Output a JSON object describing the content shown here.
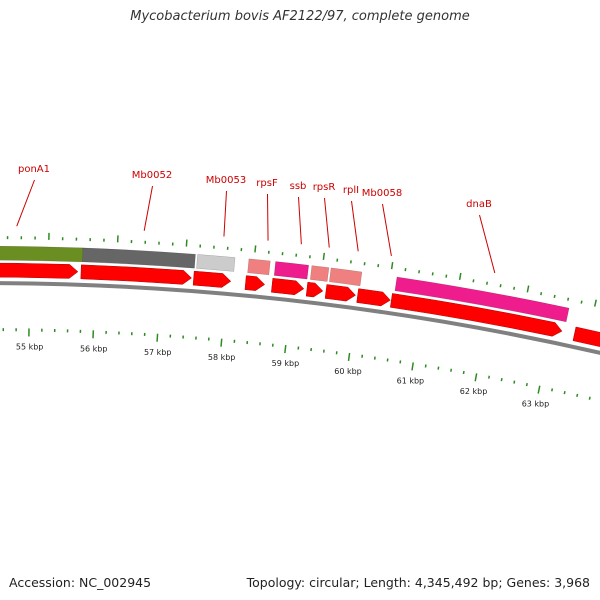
{
  "title": "Mycobacterium bovis AF2122/97, complete genome",
  "footer": {
    "accession": "Accession: NC_002945",
    "summary": "Topology: circular; Length: 4,345,492 bp; Genes: 3,968"
  },
  "gene_labels": [
    "ponA1",
    "Mb0052",
    "Mb0053",
    "rpsF",
    "ssb",
    "rpsR",
    "rplI",
    "Mb0058",
    "dnaB"
  ],
  "scale_labels": [
    "55 kbp",
    "56 kbp",
    "57 kbp",
    "58 kbp",
    "59 kbp",
    "60 kbp",
    "61 kbp",
    "62 kbp",
    "63 kbp"
  ],
  "colors": {
    "cog_green": "#6b8e23",
    "cog_darkgray": "#666666",
    "cog_lightgray": "#cccccc",
    "cog_salmon": "#f08080",
    "cog_magenta": "#ee1c8c",
    "cds_red": "#ff0000",
    "backbone": "#808080",
    "tick_green": "#2e8b22",
    "label_red": "#cc0000"
  }
}
